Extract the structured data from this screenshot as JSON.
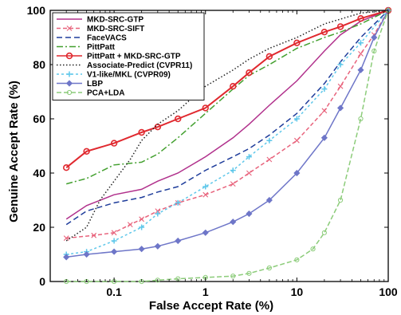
{
  "chart_data": {
    "type": "line",
    "xlabel": "False Accept Rate (%)",
    "ylabel": "Genuine Accept Rate (%)",
    "xscale": "log",
    "xlim": [
      0.02,
      100
    ],
    "ylim": [
      0,
      100
    ],
    "x_ticks": [
      0.1,
      1,
      10,
      100
    ],
    "x_tick_labels": [
      "0.1",
      "1",
      "10",
      "100"
    ],
    "y_ticks": [
      0,
      20,
      40,
      60,
      80,
      100
    ],
    "y_tick_labels": [
      "0",
      "20",
      "40",
      "60",
      "80",
      "100"
    ],
    "legend_position": "top-left",
    "series": [
      {
        "name": "MKD-SRC-GTP",
        "color": "#b1318c",
        "dash": "solid",
        "marker": "none",
        "points": [
          [
            0.03,
            23
          ],
          [
            0.05,
            28
          ],
          [
            0.1,
            32
          ],
          [
            0.2,
            34
          ],
          [
            0.3,
            37
          ],
          [
            0.5,
            40
          ],
          [
            1,
            46
          ],
          [
            2,
            53
          ],
          [
            3,
            58
          ],
          [
            5,
            65
          ],
          [
            10,
            74
          ],
          [
            20,
            85
          ],
          [
            30,
            91
          ],
          [
            50,
            96
          ],
          [
            100,
            100
          ]
        ]
      },
      {
        "name": "MKD-SRC-SIFT",
        "color": "#e8637c",
        "dash": "5,3",
        "marker": "x",
        "points": [
          [
            0.03,
            16
          ],
          [
            0.06,
            17
          ],
          [
            0.1,
            18
          ],
          [
            0.15,
            21
          ],
          [
            0.2,
            23
          ],
          [
            0.3,
            26
          ],
          [
            0.5,
            29
          ],
          [
            1,
            32
          ],
          [
            2,
            36
          ],
          [
            3,
            40
          ],
          [
            5,
            45
          ],
          [
            10,
            52
          ],
          [
            20,
            63
          ],
          [
            30,
            72
          ],
          [
            50,
            84
          ],
          [
            70,
            91
          ],
          [
            100,
            100
          ]
        ]
      },
      {
        "name": "FaceVACS",
        "color": "#1f3d9b",
        "dash": "7,4",
        "marker": "none",
        "points": [
          [
            0.03,
            21
          ],
          [
            0.05,
            26
          ],
          [
            0.1,
            29
          ],
          [
            0.2,
            31
          ],
          [
            0.3,
            33
          ],
          [
            0.5,
            35
          ],
          [
            1,
            41
          ],
          [
            2,
            46
          ],
          [
            3,
            49
          ],
          [
            5,
            54
          ],
          [
            10,
            62
          ],
          [
            20,
            73
          ],
          [
            30,
            81
          ],
          [
            50,
            90
          ],
          [
            100,
            100
          ]
        ]
      },
      {
        "name": "PittPatt",
        "color": "#43a02f",
        "dash": "8,3,2,3",
        "marker": "none",
        "points": [
          [
            0.03,
            36
          ],
          [
            0.05,
            38
          ],
          [
            0.1,
            43
          ],
          [
            0.2,
            44
          ],
          [
            0.3,
            47
          ],
          [
            0.5,
            53
          ],
          [
            1,
            62
          ],
          [
            2,
            71
          ],
          [
            3,
            76
          ],
          [
            5,
            80
          ],
          [
            10,
            86
          ],
          [
            20,
            90
          ],
          [
            30,
            92
          ],
          [
            50,
            95
          ],
          [
            100,
            100
          ]
        ]
      },
      {
        "name": "PittPatt + MKD-SRC-GTP",
        "color": "#e0292f",
        "dash": "solid",
        "marker": "circle",
        "points": [
          [
            0.03,
            42
          ],
          [
            0.05,
            48
          ],
          [
            0.1,
            51
          ],
          [
            0.2,
            55
          ],
          [
            0.3,
            57
          ],
          [
            0.5,
            60
          ],
          [
            1,
            64
          ],
          [
            2,
            72
          ],
          [
            3,
            77
          ],
          [
            5,
            83
          ],
          [
            10,
            88
          ],
          [
            20,
            92
          ],
          [
            30,
            94
          ],
          [
            50,
            97
          ],
          [
            100,
            100
          ]
        ]
      },
      {
        "name": "Associate-Predict (CVPR11)",
        "color": "#222222",
        "dash": "1.5,2.5",
        "marker": "none",
        "points": [
          [
            0.03,
            15
          ],
          [
            0.05,
            20
          ],
          [
            0.07,
            30
          ],
          [
            0.1,
            37
          ],
          [
            0.15,
            45
          ],
          [
            0.2,
            52
          ],
          [
            0.3,
            58
          ],
          [
            0.5,
            63
          ],
          [
            1,
            72
          ],
          [
            2,
            78
          ],
          [
            3,
            82
          ],
          [
            5,
            86
          ],
          [
            10,
            90
          ],
          [
            20,
            95
          ],
          [
            50,
            99
          ],
          [
            100,
            100
          ]
        ]
      },
      {
        "name": "V1-like/MKL (CVPR09)",
        "color": "#5ec7ea",
        "dash": "3,3",
        "marker": "plus",
        "points": [
          [
            0.03,
            10
          ],
          [
            0.05,
            11
          ],
          [
            0.1,
            15
          ],
          [
            0.2,
            20
          ],
          [
            0.3,
            25
          ],
          [
            0.5,
            29
          ],
          [
            1,
            35
          ],
          [
            2,
            41
          ],
          [
            3,
            46
          ],
          [
            5,
            52
          ],
          [
            10,
            60
          ],
          [
            20,
            71
          ],
          [
            30,
            80
          ],
          [
            50,
            88
          ],
          [
            100,
            100
          ]
        ]
      },
      {
        "name": "LBP",
        "color": "#6e76c8",
        "dash": "solid",
        "marker": "diamond",
        "points": [
          [
            0.03,
            9
          ],
          [
            0.05,
            10
          ],
          [
            0.1,
            11
          ],
          [
            0.2,
            12
          ],
          [
            0.3,
            13
          ],
          [
            0.5,
            15
          ],
          [
            1,
            18
          ],
          [
            2,
            22
          ],
          [
            3,
            25
          ],
          [
            5,
            30
          ],
          [
            10,
            40
          ],
          [
            20,
            53
          ],
          [
            30,
            64
          ],
          [
            50,
            78
          ],
          [
            70,
            90
          ],
          [
            100,
            100
          ]
        ]
      },
      {
        "name": "PCA+LDA",
        "color": "#8ccc7a",
        "dash": "6,3",
        "marker": "circle-open",
        "points": [
          [
            0.03,
            0
          ],
          [
            0.05,
            0
          ],
          [
            0.1,
            0
          ],
          [
            0.2,
            0
          ],
          [
            0.3,
            0.5
          ],
          [
            0.5,
            1
          ],
          [
            1,
            1.5
          ],
          [
            2,
            2
          ],
          [
            3,
            3
          ],
          [
            5,
            5
          ],
          [
            10,
            8
          ],
          [
            15,
            12
          ],
          [
            20,
            18
          ],
          [
            30,
            30
          ],
          [
            50,
            60
          ],
          [
            70,
            85
          ],
          [
            100,
            100
          ]
        ]
      }
    ]
  }
}
